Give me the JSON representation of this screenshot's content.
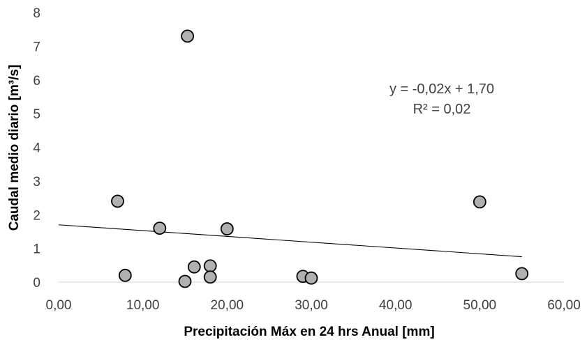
{
  "chart_data": {
    "type": "scatter",
    "xlabel": "Precipitación Máx en 24 hrs Anual [mm]",
    "ylabel": "Caudal medio diario [m³/s]",
    "xlim": [
      0,
      60
    ],
    "ylim": [
      0,
      8
    ],
    "x_ticks": [
      "0,00",
      "10,00",
      "20,00",
      "30,00",
      "40,00",
      "50,00",
      "60,00"
    ],
    "y_ticks": [
      "0",
      "1",
      "2",
      "3",
      "4",
      "5",
      "6",
      "7",
      "8"
    ],
    "grid": false,
    "legend": "none",
    "marker_fill": "#b0b0b0",
    "marker_stroke": "#000000",
    "series": [
      {
        "points": [
          {
            "x": 7.0,
            "y": 2.4
          },
          {
            "x": 7.9,
            "y": 0.2
          },
          {
            "x": 12.0,
            "y": 1.6
          },
          {
            "x": 15.0,
            "y": 0.02
          },
          {
            "x": 15.3,
            "y": 7.3
          },
          {
            "x": 16.1,
            "y": 0.45
          },
          {
            "x": 18.0,
            "y": 0.48
          },
          {
            "x": 18.0,
            "y": 0.15
          },
          {
            "x": 20.0,
            "y": 1.58
          },
          {
            "x": 29.0,
            "y": 0.17
          },
          {
            "x": 30.0,
            "y": 0.12
          },
          {
            "x": 50.0,
            "y": 2.38
          },
          {
            "x": 55.0,
            "y": 0.25
          }
        ]
      }
    ],
    "trendline": {
      "slope": -0.0172,
      "intercept": 1.7,
      "x_start": 0,
      "x_end": 55,
      "color": "#000000",
      "equation_text": "y = -0,02x + 1,70",
      "r2_text": "R² = 0,02"
    }
  }
}
